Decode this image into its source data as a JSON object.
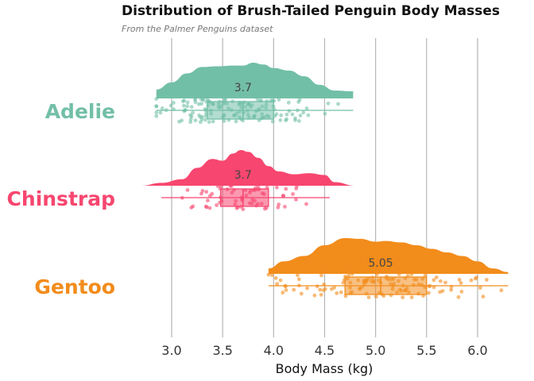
{
  "chart_data": {
    "type": "raincloud",
    "title": "Distribution of Brush-Tailed Penguin Body Masses",
    "subtitle": "From the Palmer Penguins dataset",
    "xlabel": "Body Mass (kg)",
    "xlim": [
      2.6,
      6.35
    ],
    "xticks": [
      3.0,
      3.5,
      4.0,
      4.5,
      5.0,
      5.5,
      6.0
    ],
    "xtick_labels": [
      "3.0",
      "3.5",
      "4.0",
      "4.5",
      "5.0",
      "5.5",
      "6.0"
    ],
    "grid": "vertical",
    "series": [
      {
        "name": "Adelie",
        "color": "#72bfa7",
        "median": 3.7,
        "median_label": "3.7",
        "q1": 3.35,
        "q3": 4.0,
        "whisker_low": 2.85,
        "whisker_high": 4.78,
        "density_x": [
          2.85,
          3.0,
          3.15,
          3.3,
          3.45,
          3.6,
          3.7,
          3.8,
          3.9,
          4.0,
          4.15,
          4.3,
          4.45,
          4.6,
          4.78
        ],
        "density_y": [
          0.25,
          0.45,
          0.7,
          0.88,
          0.9,
          0.92,
          0.92,
          1.0,
          0.95,
          0.85,
          0.78,
          0.62,
          0.38,
          0.22,
          0.2
        ]
      },
      {
        "name": "Chinstrap",
        "color": "#f7466f",
        "median": 3.7,
        "median_label": "3.7",
        "q1": 3.48,
        "q3": 3.95,
        "whisker_low": 2.9,
        "whisker_high": 4.55,
        "density_x": [
          2.7,
          2.9,
          3.1,
          3.25,
          3.4,
          3.5,
          3.6,
          3.68,
          3.75,
          3.85,
          3.95,
          4.05,
          4.2,
          4.35,
          4.5,
          4.6,
          4.8
        ],
        "density_y": [
          0.0,
          0.08,
          0.18,
          0.5,
          0.75,
          0.7,
          0.9,
          1.0,
          0.95,
          0.78,
          0.55,
          0.4,
          0.32,
          0.35,
          0.3,
          0.1,
          0.0
        ]
      },
      {
        "name": "Gentoo",
        "color": "#f28c1b",
        "median": 5.05,
        "median_label": "5.05",
        "q1": 4.7,
        "q3": 5.5,
        "whisker_low": 3.95,
        "whisker_high": 6.3,
        "density_x": [
          3.95,
          4.1,
          4.3,
          4.5,
          4.7,
          4.85,
          5.0,
          5.1,
          5.25,
          5.4,
          5.55,
          5.7,
          5.85,
          6.0,
          6.15,
          6.3
        ],
        "density_y": [
          0.15,
          0.35,
          0.5,
          0.8,
          1.0,
          0.98,
          0.9,
          0.92,
          0.88,
          0.8,
          0.7,
          0.6,
          0.5,
          0.35,
          0.15,
          0.05
        ]
      }
    ]
  }
}
